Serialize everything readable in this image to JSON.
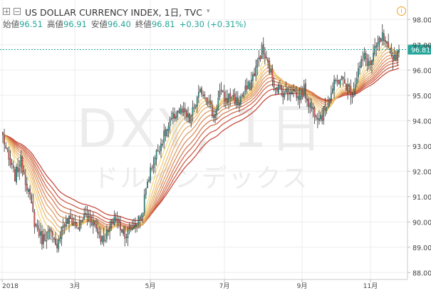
{
  "header": {
    "title": "US DOLLAR CURRENCY INDEX, 1日, TVC",
    "open_label": "始値",
    "open_value": "96.51",
    "high_label": "高値",
    "high_value": "96.91",
    "low_label": "安値",
    "low_value": "96.40",
    "close_label": "終値",
    "close_value": "96.81",
    "change": "+0.30 (+0.31%)",
    "info_icon": "i"
  },
  "watermark": {
    "symbol": "DXY, 1日",
    "name": "ドルインデックス"
  },
  "last_price_label": "96.81",
  "colors": {
    "up": "#26a69a",
    "down": "#ef5350",
    "grid": "#eeeeee",
    "watermark": "#ececec",
    "ribbon_start": "#f5d97a",
    "ribbon_end": "#c0392b"
  },
  "chart_data": {
    "type": "candlestick",
    "ylim": [
      87.5,
      98.6
    ],
    "y_ticks": [
      "98.00",
      "97.00",
      "96.00",
      "95.00",
      "94.00",
      "93.00",
      "92.00",
      "91.00",
      "90.00",
      "89.00",
      "88.00"
    ],
    "x_ticks": [
      "2018",
      "3月",
      "5月",
      "7月",
      "9月",
      "11月"
    ],
    "last_price": 96.81,
    "anchor_closes": [
      [
        0,
        93.4
      ],
      [
        4,
        92.4
      ],
      [
        8,
        91.8
      ],
      [
        12,
        92.4
      ],
      [
        17,
        91.2
      ],
      [
        21,
        90.0
      ],
      [
        26,
        89.3
      ],
      [
        31,
        89.6
      ],
      [
        35,
        89.0
      ],
      [
        40,
        89.9
      ],
      [
        45,
        90.1
      ],
      [
        50,
        89.8
      ],
      [
        55,
        90.3
      ],
      [
        60,
        90.0
      ],
      [
        66,
        89.3
      ],
      [
        70,
        89.6
      ],
      [
        74,
        90.2
      ],
      [
        78,
        89.8
      ],
      [
        82,
        89.5
      ],
      [
        86,
        89.8
      ],
      [
        92,
        90.2
      ],
      [
        96,
        91.6
      ],
      [
        100,
        92.4
      ],
      [
        104,
        93.0
      ],
      [
        108,
        93.5
      ],
      [
        112,
        94.0
      ],
      [
        116,
        94.4
      ],
      [
        120,
        94.3
      ],
      [
        124,
        94.0
      ],
      [
        128,
        94.7
      ],
      [
        132,
        95.2
      ],
      [
        136,
        94.9
      ],
      [
        140,
        94.1
      ],
      [
        144,
        95.1
      ],
      [
        148,
        94.8
      ],
      [
        152,
        95.0
      ],
      [
        156,
        94.7
      ],
      [
        160,
        95.1
      ],
      [
        164,
        95.4
      ],
      [
        168,
        96.1
      ],
      [
        172,
        96.8
      ],
      [
        176,
        96.2
      ],
      [
        180,
        95.5
      ],
      [
        184,
        95.2
      ],
      [
        188,
        95.1
      ],
      [
        192,
        95.3
      ],
      [
        196,
        94.9
      ],
      [
        200,
        95.2
      ],
      [
        204,
        94.6
      ],
      [
        208,
        94.3
      ],
      [
        212,
        94.2
      ],
      [
        216,
        94.8
      ],
      [
        220,
        95.4
      ],
      [
        224,
        95.7
      ],
      [
        228,
        95.4
      ],
      [
        232,
        95.1
      ],
      [
        236,
        96.0
      ],
      [
        240,
        96.5
      ],
      [
        244,
        96.2
      ],
      [
        248,
        96.9
      ],
      [
        252,
        97.3
      ],
      [
        256,
        96.7
      ],
      [
        260,
        96.5
      ],
      [
        263,
        96.81
      ]
    ]
  }
}
